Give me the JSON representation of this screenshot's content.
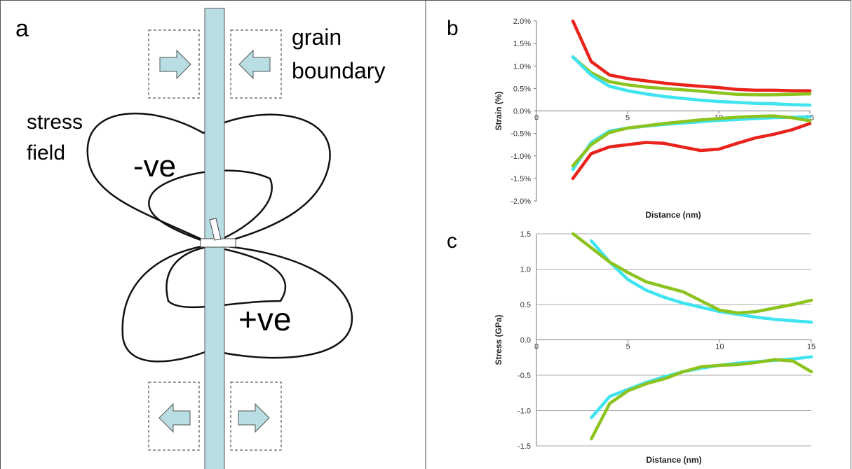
{
  "diagram": {
    "label": "a",
    "boundary_label": [
      "grain",
      "boundary"
    ],
    "field_label": [
      "stress",
      "field"
    ],
    "negative": "-ve",
    "positive": "+ve"
  },
  "chart_data": [
    {
      "type": "line",
      "label": "b",
      "y_label": "Strain (%)",
      "x_label": "Distance (nm)",
      "xlim": [
        0,
        15
      ],
      "xticks": [
        0,
        5,
        10,
        15
      ],
      "ylim": [
        -2,
        2
      ],
      "yticks": [
        {
          "value": -2,
          "label": "-2.0%"
        },
        {
          "value": -1.5,
          "label": "-1.5%"
        },
        {
          "value": -1,
          "label": "-1.0%"
        },
        {
          "value": -0.5,
          "label": "-0.5%"
        },
        {
          "value": 0,
          "label": "0.0%"
        },
        {
          "value": 0.5,
          "label": "0.5%"
        },
        {
          "value": 1,
          "label": "1.0%"
        },
        {
          "value": 1.5,
          "label": "1.5%"
        },
        {
          "value": 2,
          "label": "2.0%"
        }
      ],
      "grid": false,
      "x": [
        2,
        3,
        4,
        5,
        6,
        7,
        8,
        9,
        10,
        11,
        12,
        13,
        14,
        15
      ],
      "series": [
        {
          "color": "#e8231c",
          "values": [
            2.0,
            1.1,
            0.8,
            0.72,
            0.67,
            0.62,
            0.58,
            0.55,
            0.52,
            0.48,
            0.46,
            0.46,
            0.45,
            0.45
          ]
        },
        {
          "color": "#8dc31f",
          "values": [
            1.2,
            0.85,
            0.65,
            0.58,
            0.53,
            0.5,
            0.47,
            0.44,
            0.4,
            0.37,
            0.36,
            0.36,
            0.37,
            0.38
          ]
        },
        {
          "color": "#3fe4f0",
          "values": [
            1.2,
            0.8,
            0.55,
            0.45,
            0.38,
            0.32,
            0.28,
            0.24,
            0.21,
            0.19,
            0.17,
            0.16,
            0.14,
            0.13
          ]
        },
        {
          "color": "#e8231c",
          "values": [
            -1.5,
            -0.95,
            -0.8,
            -0.75,
            -0.7,
            -0.72,
            -0.8,
            -0.88,
            -0.85,
            -0.72,
            -0.6,
            -0.52,
            -0.42,
            -0.28
          ]
        },
        {
          "color": "#3fe4f0",
          "values": [
            -1.3,
            -0.7,
            -0.45,
            -0.38,
            -0.34,
            -0.3,
            -0.27,
            -0.24,
            -0.21,
            -0.19,
            -0.17,
            -0.15,
            -0.14,
            -0.13
          ]
        },
        {
          "color": "#8dc31f",
          "values": [
            -1.22,
            -0.75,
            -0.48,
            -0.38,
            -0.33,
            -0.28,
            -0.24,
            -0.2,
            -0.17,
            -0.14,
            -0.12,
            -0.11,
            -0.15,
            -0.22
          ]
        }
      ]
    },
    {
      "type": "line",
      "label": "c",
      "y_label": "Stress (GPa)",
      "x_label": "Distance (nm)",
      "xlim": [
        0,
        15
      ],
      "xticks": [
        0,
        5,
        10,
        15
      ],
      "ylim": [
        -1.5,
        1.5
      ],
      "yticks": [
        -1.5,
        {
          "value": -1,
          "label": "-1.0"
        },
        -0.5,
        {
          "value": 0,
          "label": "0.0"
        },
        0.5,
        {
          "value": 1,
          "label": "1.0"
        },
        1.5
      ],
      "grid": true,
      "x": [
        2,
        3,
        4,
        5,
        6,
        7,
        8,
        9,
        10,
        11,
        12,
        13,
        14,
        15
      ],
      "series": [
        {
          "color": "#3fe4f0",
          "values": [
            null,
            1.4,
            1.1,
            0.85,
            0.7,
            0.6,
            0.52,
            0.46,
            0.4,
            0.36,
            0.32,
            0.29,
            0.27,
            0.25
          ]
        },
        {
          "color": "#8dc31f",
          "values": [
            1.5,
            1.3,
            1.1,
            0.95,
            0.82,
            0.75,
            0.68,
            0.55,
            0.42,
            0.38,
            0.4,
            0.45,
            0.5,
            0.56
          ]
        },
        {
          "color": "#3fe4f0",
          "values": [
            null,
            -1.1,
            -0.8,
            -0.7,
            -0.6,
            -0.52,
            -0.45,
            -0.4,
            -0.36,
            -0.33,
            -0.31,
            -0.29,
            -0.27,
            -0.24
          ]
        },
        {
          "color": "#8dc31f",
          "values": [
            null,
            -1.4,
            -0.9,
            -0.72,
            -0.62,
            -0.55,
            -0.45,
            -0.38,
            -0.36,
            -0.35,
            -0.32,
            -0.28,
            -0.3,
            -0.45
          ]
        }
      ]
    }
  ]
}
